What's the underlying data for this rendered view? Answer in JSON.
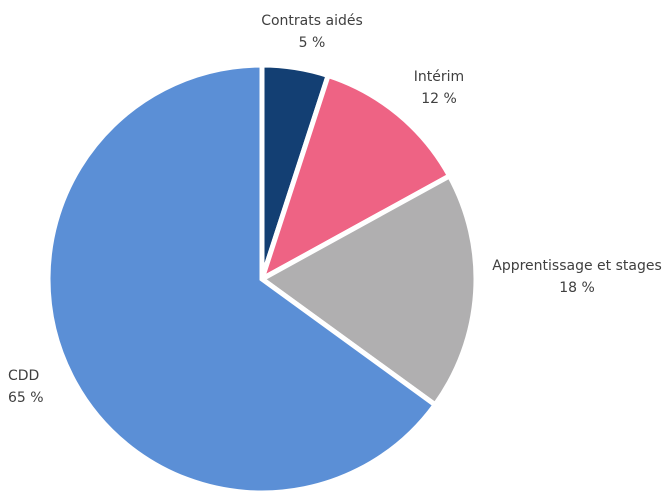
{
  "chart_data": {
    "type": "pie",
    "start_angle_deg": 0,
    "direction": "clockwise",
    "slices": [
      {
        "label": "Contrats aidés",
        "value": 5,
        "value_label": "5 %",
        "color": "#133f73"
      },
      {
        "label": "Intérim",
        "value": 12,
        "value_label": "12 %",
        "color": "#ee6384"
      },
      {
        "label": "Apprentissage et stages",
        "value": 18,
        "value_label": "18 %",
        "color": "#b0afb0"
      },
      {
        "label": "CDD",
        "value": 65,
        "value_label": "65 %",
        "color": "#5b8fd6"
      }
    ],
    "legend": "none"
  }
}
